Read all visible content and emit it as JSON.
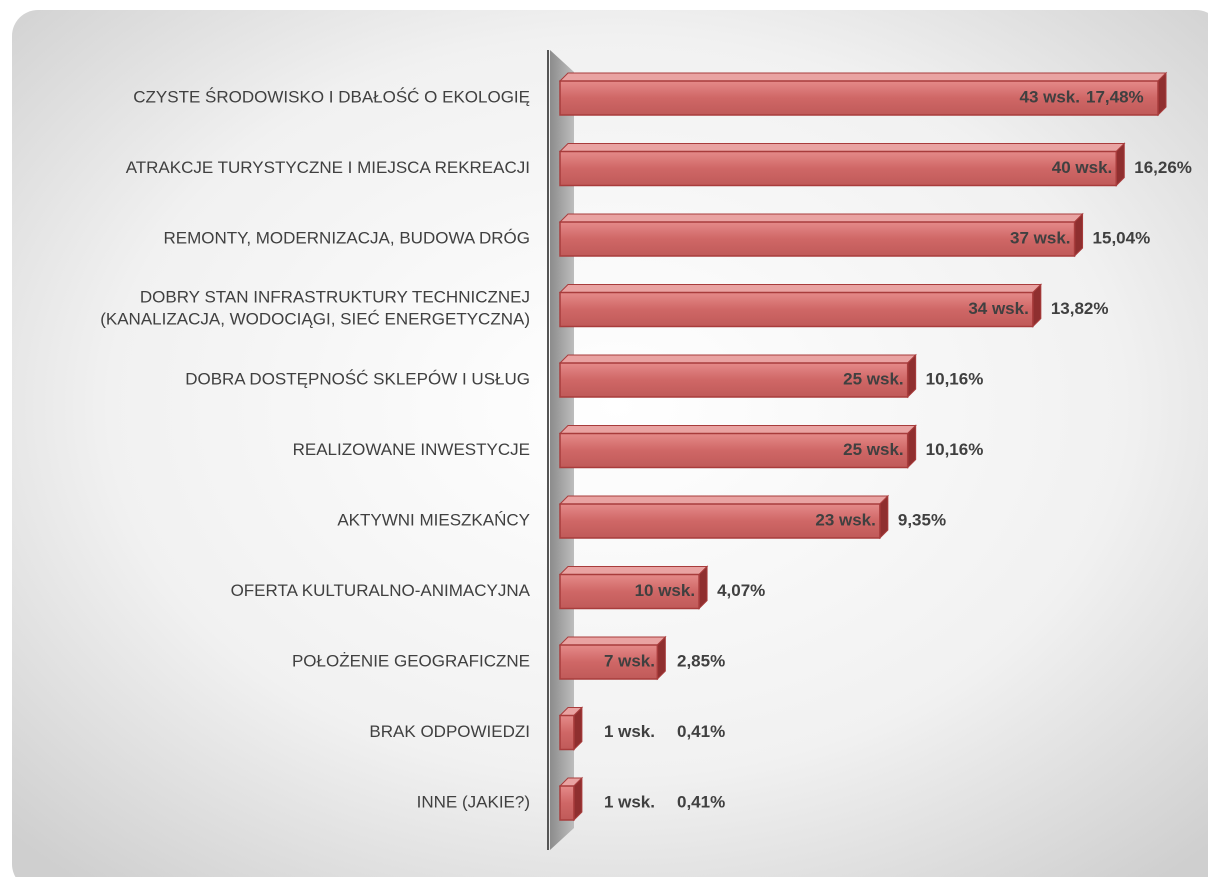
{
  "chart_data": {
    "type": "bar3d-horizontal",
    "categories": [
      "CZYSTE ŚRODOWISKO I DBAŁOŚĆ O EKOLOGIĘ",
      "ATRAKCJE TURYSTYCZNE I MIEJSCA REKREACJI",
      "REMONTY, MODERNIZACJA, BUDOWA DRÓG",
      "DOBRY STAN INFRASTRUKTURY TECHNICZNEJ\n(KANALIZACJA, WODOCIĄGI, SIEĆ ENERGETYCZNA)",
      "DOBRA DOSTĘPNOŚĆ SKLEPÓW I USŁUG",
      "REALIZOWANE INWESTYCJE",
      "AKTYWNI MIESZKAŃCY",
      "OFERTA KULTURALNO-ANIMACYJNA",
      "POŁOŻENIE GEOGRAFICZNE",
      "BRAK ODPOWIEDZI",
      "INNE (JAKIE?)"
    ],
    "values": [
      43,
      40,
      37,
      34,
      25,
      25,
      23,
      10,
      7,
      1,
      1
    ],
    "value_labels": [
      "43 wsk.",
      "40 wsk.",
      "37 wsk.",
      "34 wsk.",
      "25 wsk.",
      "25 wsk.",
      "23 wsk.",
      "10 wsk.",
      "7 wsk.",
      "1 wsk.",
      "1 wsk."
    ],
    "shares": [
      17.48,
      16.26,
      15.04,
      13.82,
      10.16,
      10.16,
      9.35,
      4.07,
      2.85,
      0.41,
      0.41
    ],
    "share_labels": [
      "17,48%",
      "16,26%",
      "15,04%",
      "13,82%",
      "10,16%",
      "10,16%",
      "9,35%",
      "4,07%",
      "2,85%",
      "0,41%",
      "0,41%"
    ],
    "color": "#c95a5a"
  }
}
